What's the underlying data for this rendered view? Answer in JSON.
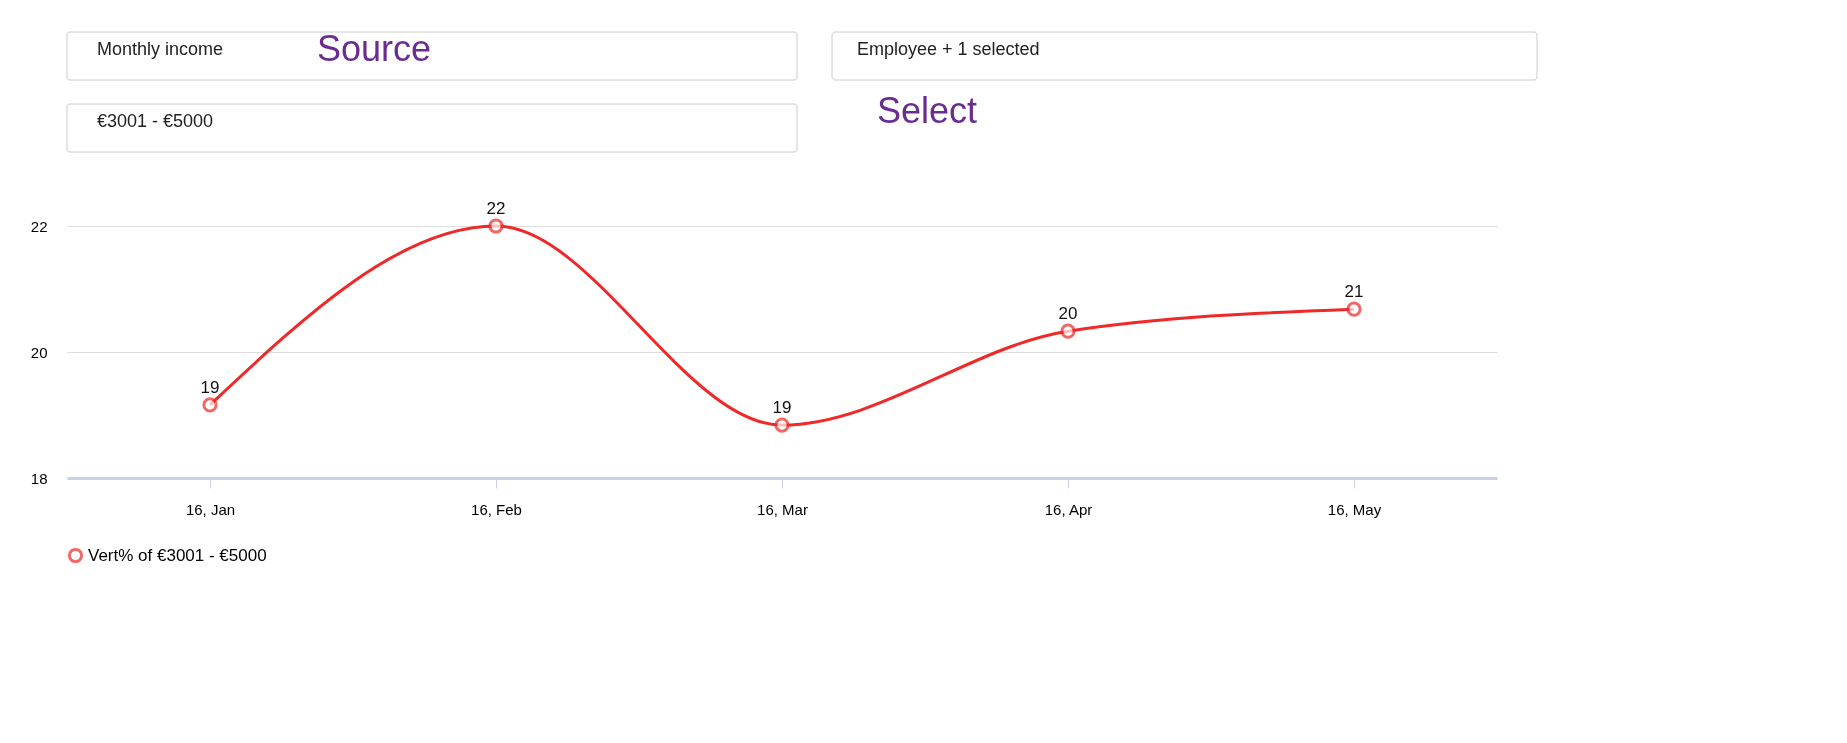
{
  "chart_data": {
    "type": "line",
    "categories": [
      "16, Jan",
      "16, Feb",
      "16, Mar",
      "16, Apr",
      "16, May"
    ],
    "series": [
      {
        "name": "Vert% of €3001 - €5000",
        "color": "#f02828",
        "values": [
          19.16,
          22.0,
          18.84,
          20.33,
          20.68
        ],
        "value_labels": [
          "19",
          "22",
          "19",
          "20",
          "21"
        ]
      }
    ],
    "ylim": [
      18,
      22
    ],
    "yticks": [
      18,
      20,
      22
    ],
    "grid": "y",
    "legend": "bottom",
    "marker": "circle",
    "line_style": "solid",
    "annotations": [
      "Monthly income",
      "Source",
      "Employee + 1 selected",
      "€3001 - €5000",
      "Select"
    ]
  }
}
